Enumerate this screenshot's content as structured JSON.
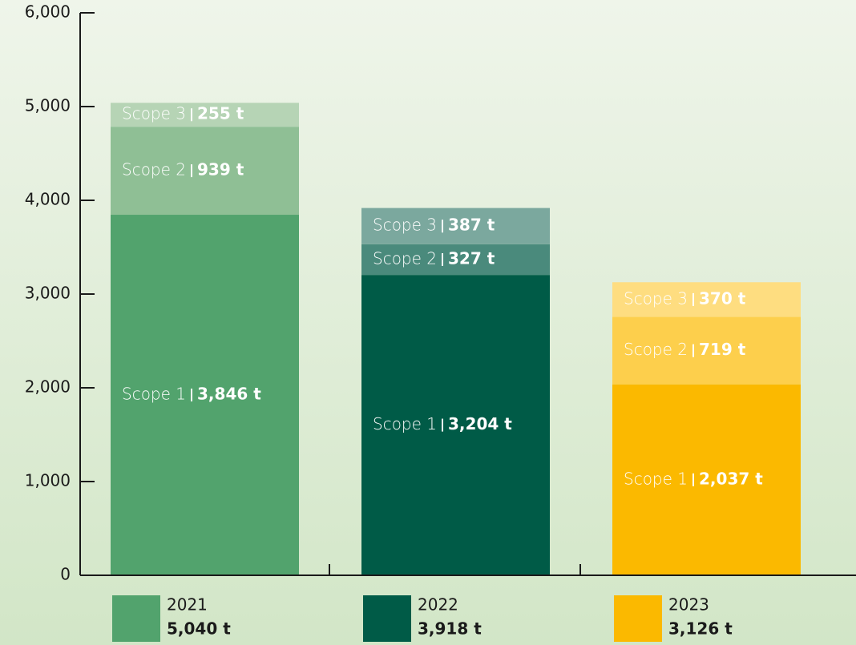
{
  "chart_data": {
    "type": "stacked_bar",
    "categories": [
      "2021",
      "2022",
      "2023"
    ],
    "total_labels": [
      "5,040 t",
      "3,918 t",
      "3,126 t"
    ],
    "series": [
      {
        "name": "Scope 1",
        "colors": [
          "#52a36d",
          "#005b47",
          "#fbb900"
        ],
        "values": [
          3846,
          3204,
          2037
        ],
        "value_labels": [
          "3,846 t",
          "3,204 t",
          "2,037 t"
        ]
      },
      {
        "name": "Scope 2",
        "colors": [
          "#8fbf95",
          "#4a8a7c",
          "#fdcf4c"
        ],
        "values": [
          939,
          327,
          719
        ],
        "value_labels": [
          "939 t",
          "327 t",
          "719 t"
        ]
      },
      {
        "name": "Scope 3",
        "colors": [
          "#b6d4b5",
          "#7ba89e",
          "#fedd80"
        ],
        "values": [
          255,
          387,
          370
        ],
        "value_labels": [
          "255 t",
          "387 t",
          "370 t"
        ]
      }
    ],
    "ylim": [
      0,
      6000
    ],
    "yticks": [
      0,
      {
        "value": 1000,
        "label": "1,000"
      },
      {
        "value": 2000,
        "label": "2,000"
      },
      {
        "value": 3000,
        "label": "3,000"
      },
      {
        "value": 4000,
        "label": "4,000"
      },
      {
        "value": 5000,
        "label": "5,000"
      },
      {
        "value": 6000,
        "label": "6,000"
      }
    ],
    "grid": false
  }
}
